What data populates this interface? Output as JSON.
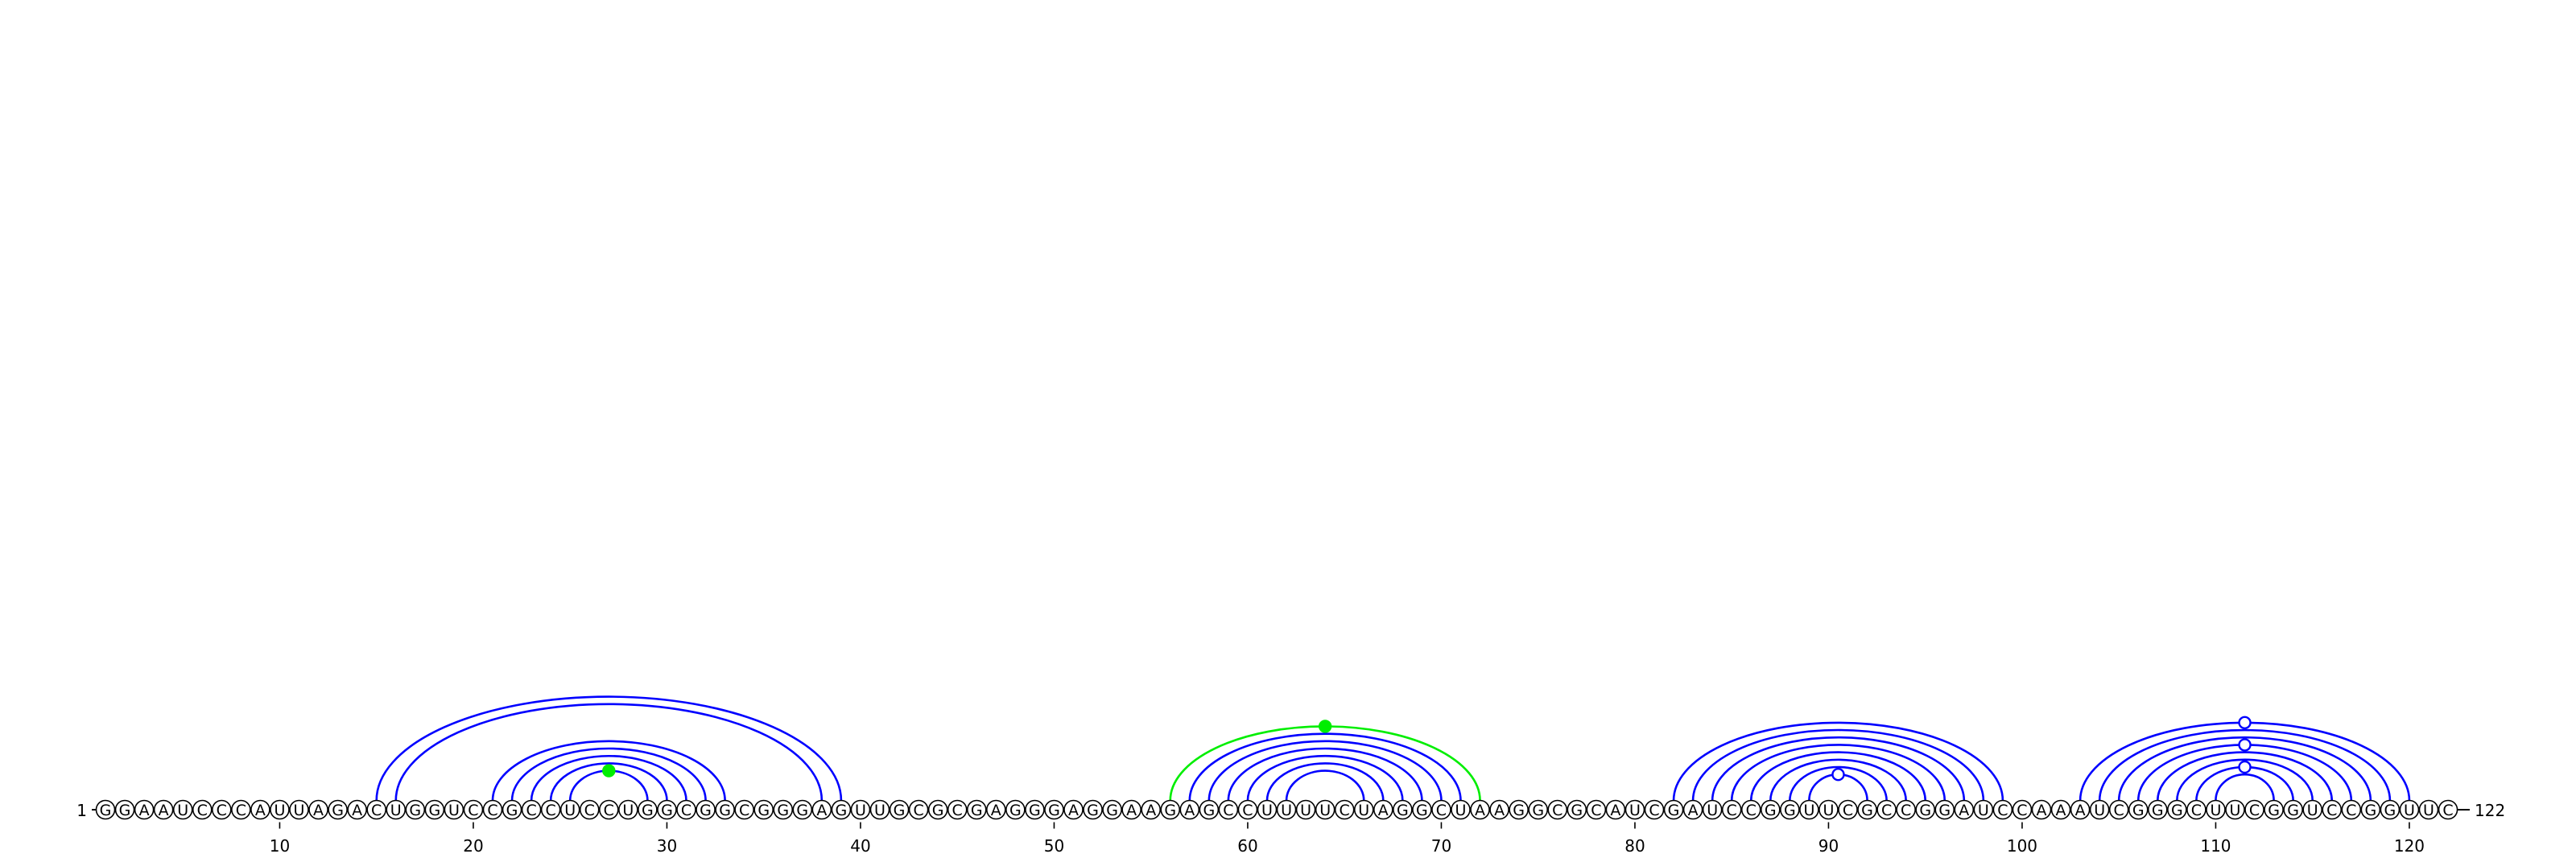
{
  "sequence": "GGAAUCCCAUUAGACUGGUCCGCCUCCUGGCGGCGGGAGUUGCGCGAGGGAGGAAGAGCCUUUUCUAGGCUAAGGCGCAUCGAUCCGGUUCGCCGGAUCCAAAUCGGGCUUCGGUCCGGUUC",
  "start_label": "1",
  "end_label": "122",
  "tick_labels": [
    "10",
    "20",
    "30",
    "40",
    "50",
    "60",
    "70",
    "80",
    "90",
    "100",
    "110",
    "120"
  ],
  "colors": {
    "pair": "#0000ff",
    "highlight": "#00ee00",
    "nucleotide_stroke": "#000000",
    "nucleotide_fill": "#ffffff",
    "background": "#ffffff"
  },
  "pairs": [
    [
      15,
      39
    ],
    [
      16,
      38
    ],
    [
      21,
      33
    ],
    [
      22,
      32
    ],
    [
      23,
      31
    ],
    [
      24,
      30
    ],
    [
      25,
      29
    ],
    [
      56,
      72
    ],
    [
      57,
      71
    ],
    [
      58,
      70
    ],
    [
      59,
      69
    ],
    [
      60,
      68
    ],
    [
      61,
      67
    ],
    [
      62,
      66
    ],
    [
      82,
      99
    ],
    [
      83,
      98
    ],
    [
      84,
      97
    ],
    [
      85,
      96
    ],
    [
      86,
      95
    ],
    [
      87,
      94
    ],
    [
      88,
      93
    ],
    [
      89,
      92
    ],
    [
      103,
      120
    ],
    [
      104,
      119
    ],
    [
      105,
      118
    ],
    [
      106,
      117
    ],
    [
      107,
      116
    ],
    [
      108,
      115
    ],
    [
      109,
      114
    ],
    [
      110,
      113
    ]
  ],
  "highlight_pairs": [
    [
      56,
      72
    ]
  ],
  "markers": [
    {
      "between": [
        25,
        29
      ],
      "style": "filled-green"
    },
    {
      "between": [
        56,
        72
      ],
      "style": "filled-green"
    },
    {
      "between": [
        89,
        92
      ],
      "style": "hollow-blue"
    },
    {
      "between": [
        109,
        114
      ],
      "style": "hollow-blue"
    },
    {
      "between": [
        106,
        117
      ],
      "style": "hollow-blue"
    },
    {
      "between": [
        103,
        120
      ],
      "style": "hollow-blue"
    }
  ]
}
